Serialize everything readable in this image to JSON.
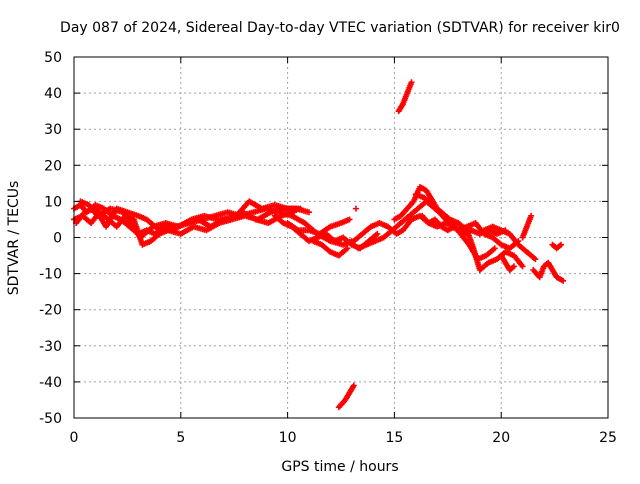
{
  "chart_data": {
    "type": "scatter",
    "title": "Day 087 of 2024, Sidereal Day-to-day VTEC variation (SDTVAR) for receiver kir0",
    "xlabel": "GPS time / hours",
    "ylabel": "SDTVAR / TECUs",
    "xlim": [
      0,
      25
    ],
    "ylim": [
      -50,
      50
    ],
    "xticks": [
      0,
      5,
      10,
      15,
      20,
      25
    ],
    "yticks": [
      -50,
      -40,
      -30,
      -20,
      -10,
      0,
      10,
      20,
      30,
      40,
      50
    ],
    "grid": true,
    "marker": "+",
    "series": [
      {
        "name": "SDTVAR",
        "color": "#ff0000",
        "tracks": [
          [
            [
              0.0,
              8
            ],
            [
              0.3,
              9
            ],
            [
              0.6,
              7
            ],
            [
              1.0,
              9
            ],
            [
              1.4,
              8
            ],
            [
              1.8,
              6
            ],
            [
              2.2,
              5
            ],
            [
              2.6,
              3
            ],
            [
              3.0,
              1
            ],
            [
              3.4,
              2
            ],
            [
              3.8,
              1
            ],
            [
              4.2,
              3
            ],
            [
              4.8,
              3
            ],
            [
              5.4,
              4
            ],
            [
              6.0,
              5
            ],
            [
              6.6,
              6
            ],
            [
              7.2,
              7
            ],
            [
              7.8,
              6
            ],
            [
              8.4,
              7
            ],
            [
              9.0,
              8
            ],
            [
              9.6,
              7
            ],
            [
              10.2,
              6
            ],
            [
              10.8,
              4
            ],
            [
              11.4,
              1
            ],
            [
              12.0,
              -1
            ],
            [
              12.6,
              -2
            ],
            [
              13.0,
              -1
            ]
          ],
          [
            [
              0.0,
              5
            ],
            [
              0.4,
              6
            ],
            [
              0.8,
              4
            ],
            [
              1.2,
              7
            ],
            [
              1.6,
              5
            ],
            [
              2.0,
              3
            ],
            [
              2.4,
              6
            ],
            [
              2.8,
              5
            ],
            [
              3.2,
              -2
            ],
            [
              3.6,
              -1
            ],
            [
              4.0,
              1
            ],
            [
              4.4,
              2
            ],
            [
              5.0,
              1
            ],
            [
              5.6,
              3
            ],
            [
              6.2,
              2
            ],
            [
              6.8,
              4
            ],
            [
              7.4,
              5
            ],
            [
              8.0,
              6
            ],
            [
              8.6,
              5
            ],
            [
              9.2,
              7
            ],
            [
              9.8,
              8
            ],
            [
              10.4,
              8
            ],
            [
              11.0,
              7
            ]
          ],
          [
            [
              0.1,
              4
            ],
            [
              0.5,
              7
            ],
            [
              1.0,
              8
            ],
            [
              1.5,
              3
            ],
            [
              2.0,
              8
            ],
            [
              2.5,
              7
            ],
            [
              3.0,
              6
            ],
            [
              3.4,
              5
            ],
            [
              4.0,
              2
            ],
            [
              4.6,
              2
            ],
            [
              5.2,
              4
            ],
            [
              5.8,
              5
            ],
            [
              6.4,
              3
            ],
            [
              7.0,
              5
            ],
            [
              7.6,
              6
            ],
            [
              8.2,
              10
            ],
            [
              8.8,
              8
            ],
            [
              9.4,
              9
            ],
            [
              10.0,
              8
            ],
            [
              10.6,
              8
            ]
          ],
          [
            [
              0.3,
              10
            ],
            [
              0.7,
              9
            ],
            [
              1.1,
              6
            ],
            [
              1.7,
              8
            ],
            [
              2.3,
              7
            ],
            [
              3.1,
              0
            ],
            [
              3.7,
              3
            ],
            [
              4.3,
              4
            ],
            [
              4.9,
              3
            ],
            [
              5.5,
              5
            ],
            [
              6.1,
              6
            ],
            [
              6.7,
              5
            ],
            [
              7.3,
              5
            ],
            [
              7.9,
              7
            ],
            [
              8.5,
              5
            ],
            [
              9.1,
              4
            ],
            [
              9.7,
              6
            ],
            [
              10.3,
              7
            ]
          ],
          [
            [
              9.4,
              6
            ],
            [
              9.8,
              4
            ],
            [
              10.2,
              3
            ],
            [
              10.6,
              1
            ],
            [
              11.0,
              -1
            ],
            [
              11.4,
              0
            ],
            [
              11.8,
              1
            ],
            [
              12.2,
              -1
            ],
            [
              12.6,
              0
            ],
            [
              13.0,
              -2
            ],
            [
              13.4,
              -3
            ],
            [
              13.8,
              -1
            ],
            [
              14.2,
              1
            ]
          ],
          [
            [
              10.0,
              4
            ],
            [
              10.5,
              2
            ],
            [
              11.0,
              2
            ],
            [
              11.5,
              1
            ],
            [
              12.0,
              3
            ],
            [
              12.5,
              4
            ],
            [
              12.9,
              5
            ]
          ],
          [
            [
              11.2,
              -1
            ],
            [
              11.6,
              -2
            ],
            [
              12.0,
              -4
            ],
            [
              12.4,
              -5
            ],
            [
              12.8,
              -3
            ]
          ],
          [
            [
              12.4,
              -47
            ],
            [
              12.7,
              -45
            ],
            [
              12.9,
              -43
            ],
            [
              13.1,
              -41
            ]
          ],
          [
            [
              13.2,
              8
            ]
          ],
          [
            [
              13.1,
              -1
            ],
            [
              13.5,
              1
            ],
            [
              13.9,
              3
            ],
            [
              14.3,
              4
            ],
            [
              14.7,
              3
            ],
            [
              15.1,
              1
            ],
            [
              15.4,
              2
            ],
            [
              15.8,
              5
            ],
            [
              16.2,
              6
            ],
            [
              16.6,
              4
            ],
            [
              17.0,
              3
            ],
            [
              17.4,
              4
            ],
            [
              17.8,
              3
            ],
            [
              18.2,
              1
            ],
            [
              18.6,
              2
            ],
            [
              19.0,
              1
            ],
            [
              19.4,
              2
            ],
            [
              19.8,
              1
            ],
            [
              20.2,
              2
            ]
          ],
          [
            [
              13.3,
              -3
            ],
            [
              13.7,
              -2
            ],
            [
              14.1,
              -1
            ],
            [
              14.5,
              0
            ],
            [
              14.9,
              2
            ],
            [
              15.3,
              4
            ],
            [
              15.7,
              6
            ],
            [
              16.1,
              8
            ],
            [
              16.5,
              10
            ],
            [
              16.9,
              8
            ],
            [
              17.3,
              6
            ],
            [
              17.7,
              4
            ],
            [
              18.1,
              1
            ],
            [
              18.5,
              -2
            ],
            [
              18.9,
              -6
            ],
            [
              19.3,
              -5
            ],
            [
              19.7,
              -3
            ]
          ],
          [
            [
              15.2,
              35
            ],
            [
              15.4,
              37
            ],
            [
              15.6,
              40
            ],
            [
              15.8,
              43
            ]
          ],
          [
            [
              15.0,
              5
            ],
            [
              15.3,
              6
            ],
            [
              15.6,
              8
            ],
            [
              15.9,
              10
            ],
            [
              16.2,
              14
            ],
            [
              16.5,
              13
            ],
            [
              16.8,
              10
            ],
            [
              17.1,
              7
            ],
            [
              17.4,
              5
            ],
            [
              17.7,
              3
            ],
            [
              18.0,
              2
            ],
            [
              18.4,
              3
            ],
            [
              18.8,
              4
            ],
            [
              19.2,
              1
            ],
            [
              19.6,
              0
            ],
            [
              20.0,
              -2
            ],
            [
              20.4,
              -3
            ],
            [
              20.8,
              -1
            ]
          ],
          [
            [
              16.0,
              12
            ],
            [
              16.4,
              11
            ],
            [
              16.8,
              9
            ],
            [
              17.2,
              7
            ],
            [
              17.6,
              5
            ],
            [
              18.0,
              4
            ],
            [
              18.4,
              2
            ],
            [
              18.7,
              -3
            ],
            [
              19.0,
              -9
            ],
            [
              19.4,
              -7
            ],
            [
              19.8,
              -6
            ],
            [
              20.2,
              -4
            ],
            [
              20.6,
              -5
            ],
            [
              21.0,
              -8
            ]
          ],
          [
            [
              16.3,
              6
            ],
            [
              16.6,
              4
            ],
            [
              16.9,
              5
            ],
            [
              17.2,
              3
            ],
            [
              17.5,
              2
            ],
            [
              17.8,
              3
            ],
            [
              18.1,
              2
            ],
            [
              18.4,
              1
            ]
          ],
          [
            [
              19.2,
              2
            ],
            [
              19.6,
              3
            ],
            [
              20.0,
              2
            ],
            [
              20.4,
              1
            ],
            [
              20.8,
              -2
            ],
            [
              21.2,
              -4
            ],
            [
              21.6,
              -6
            ]
          ],
          [
            [
              20.0,
              -5
            ],
            [
              20.2,
              -7
            ],
            [
              20.4,
              -9
            ],
            [
              20.6,
              -8
            ]
          ],
          [
            [
              21.0,
              0
            ],
            [
              21.2,
              3
            ],
            [
              21.4,
              6
            ]
          ],
          [
            [
              21.5,
              -9
            ],
            [
              21.8,
              -11
            ],
            [
              22.0,
              -8
            ],
            [
              22.2,
              -7
            ],
            [
              22.4,
              -9
            ],
            [
              22.6,
              -11
            ],
            [
              22.9,
              -12
            ]
          ],
          [
            [
              22.4,
              -2
            ],
            [
              22.6,
              -3
            ],
            [
              22.8,
              -2
            ]
          ]
        ]
      }
    ]
  }
}
